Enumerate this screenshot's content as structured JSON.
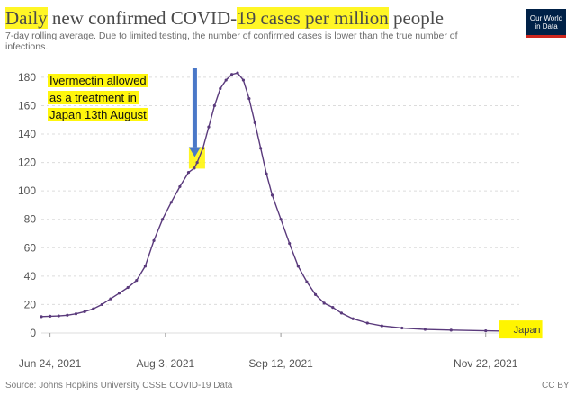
{
  "title": {
    "pre": "Daily",
    "mid1": " new confirmed COVID-",
    "hl2": "19 cases per million",
    "post": " people"
  },
  "subtitle": "7-day rolling average. Due to limited testing, the number of confirmed cases is lower than the true number of infections.",
  "logo": {
    "line1": "Our World",
    "line2": "in Data"
  },
  "annotation": {
    "line1": "Ivermectin allowed",
    "line2": "as a treatment in",
    "line3": "Japan 13th August"
  },
  "footer": {
    "source": "Source: Johns Hopkins University CSSE COVID-19 Data",
    "license": "CC BY"
  },
  "colors": {
    "series": "#5a3a7c",
    "grid": "#dcdcdc",
    "arrow": "#4a78c8",
    "highlight": "#fff500"
  },
  "chart_data": {
    "type": "line",
    "title": "Daily new confirmed COVID-19 cases per million people",
    "ylim": [
      0,
      185
    ],
    "yticks": [
      0,
      20,
      40,
      60,
      80,
      100,
      120,
      140,
      160,
      180
    ],
    "ytick_labels": [
      "0",
      "20",
      "40",
      "60",
      "80",
      "100",
      "120",
      "140",
      "160",
      "180"
    ],
    "xlim": [
      "2021-06-21",
      "2021-12-03"
    ],
    "xticks": [
      "2021-06-24",
      "2021-08-03",
      "2021-09-12",
      "2021-11-22"
    ],
    "xtick_labels": [
      "Jun 24, 2021",
      "Aug 3, 2021",
      "Sep 12, 2021",
      "Nov 22, 2021"
    ],
    "grid": true,
    "series": [
      {
        "name": "Japan",
        "points": [
          [
            "2021-06-21",
            11.5
          ],
          [
            "2021-06-24",
            11.8
          ],
          [
            "2021-06-27",
            12.0
          ],
          [
            "2021-06-30",
            12.5
          ],
          [
            "2021-07-03",
            13.5
          ],
          [
            "2021-07-06",
            15.0
          ],
          [
            "2021-07-09",
            17.0
          ],
          [
            "2021-07-12",
            20.0
          ],
          [
            "2021-07-15",
            24.0
          ],
          [
            "2021-07-18",
            28.0
          ],
          [
            "2021-07-21",
            32.0
          ],
          [
            "2021-07-24",
            37.0
          ],
          [
            "2021-07-27",
            47.0
          ],
          [
            "2021-07-30",
            65.0
          ],
          [
            "2021-08-02",
            80.0
          ],
          [
            "2021-08-05",
            92.0
          ],
          [
            "2021-08-08",
            103.0
          ],
          [
            "2021-08-11",
            113.0
          ],
          [
            "2021-08-13",
            116.0
          ],
          [
            "2021-08-14",
            120.0
          ],
          [
            "2021-08-16",
            130.0
          ],
          [
            "2021-08-18",
            145.0
          ],
          [
            "2021-08-20",
            160.0
          ],
          [
            "2021-08-22",
            172.0
          ],
          [
            "2021-08-24",
            178.0
          ],
          [
            "2021-08-26",
            182.0
          ],
          [
            "2021-08-28",
            183.0
          ],
          [
            "2021-08-30",
            178.0
          ],
          [
            "2021-09-01",
            165.0
          ],
          [
            "2021-09-03",
            148.0
          ],
          [
            "2021-09-05",
            130.0
          ],
          [
            "2021-09-07",
            112.0
          ],
          [
            "2021-09-09",
            97.0
          ],
          [
            "2021-09-12",
            80.0
          ],
          [
            "2021-09-15",
            63.0
          ],
          [
            "2021-09-18",
            47.0
          ],
          [
            "2021-09-21",
            36.0
          ],
          [
            "2021-09-24",
            27.0
          ],
          [
            "2021-09-27",
            21.0
          ],
          [
            "2021-09-30",
            18.0
          ],
          [
            "2021-10-03",
            14.0
          ],
          [
            "2021-10-07",
            10.0
          ],
          [
            "2021-10-12",
            7.0
          ],
          [
            "2021-10-17",
            5.0
          ],
          [
            "2021-10-24",
            3.5
          ],
          [
            "2021-11-01",
            2.5
          ],
          [
            "2021-11-10",
            2.0
          ],
          [
            "2021-11-22",
            1.5
          ],
          [
            "2021-12-01",
            1.2
          ]
        ]
      }
    ],
    "annotations": [
      {
        "text": "Ivermectin allowed as a treatment in Japan 13th August",
        "x": "2021-08-13",
        "y": 122
      }
    ]
  }
}
